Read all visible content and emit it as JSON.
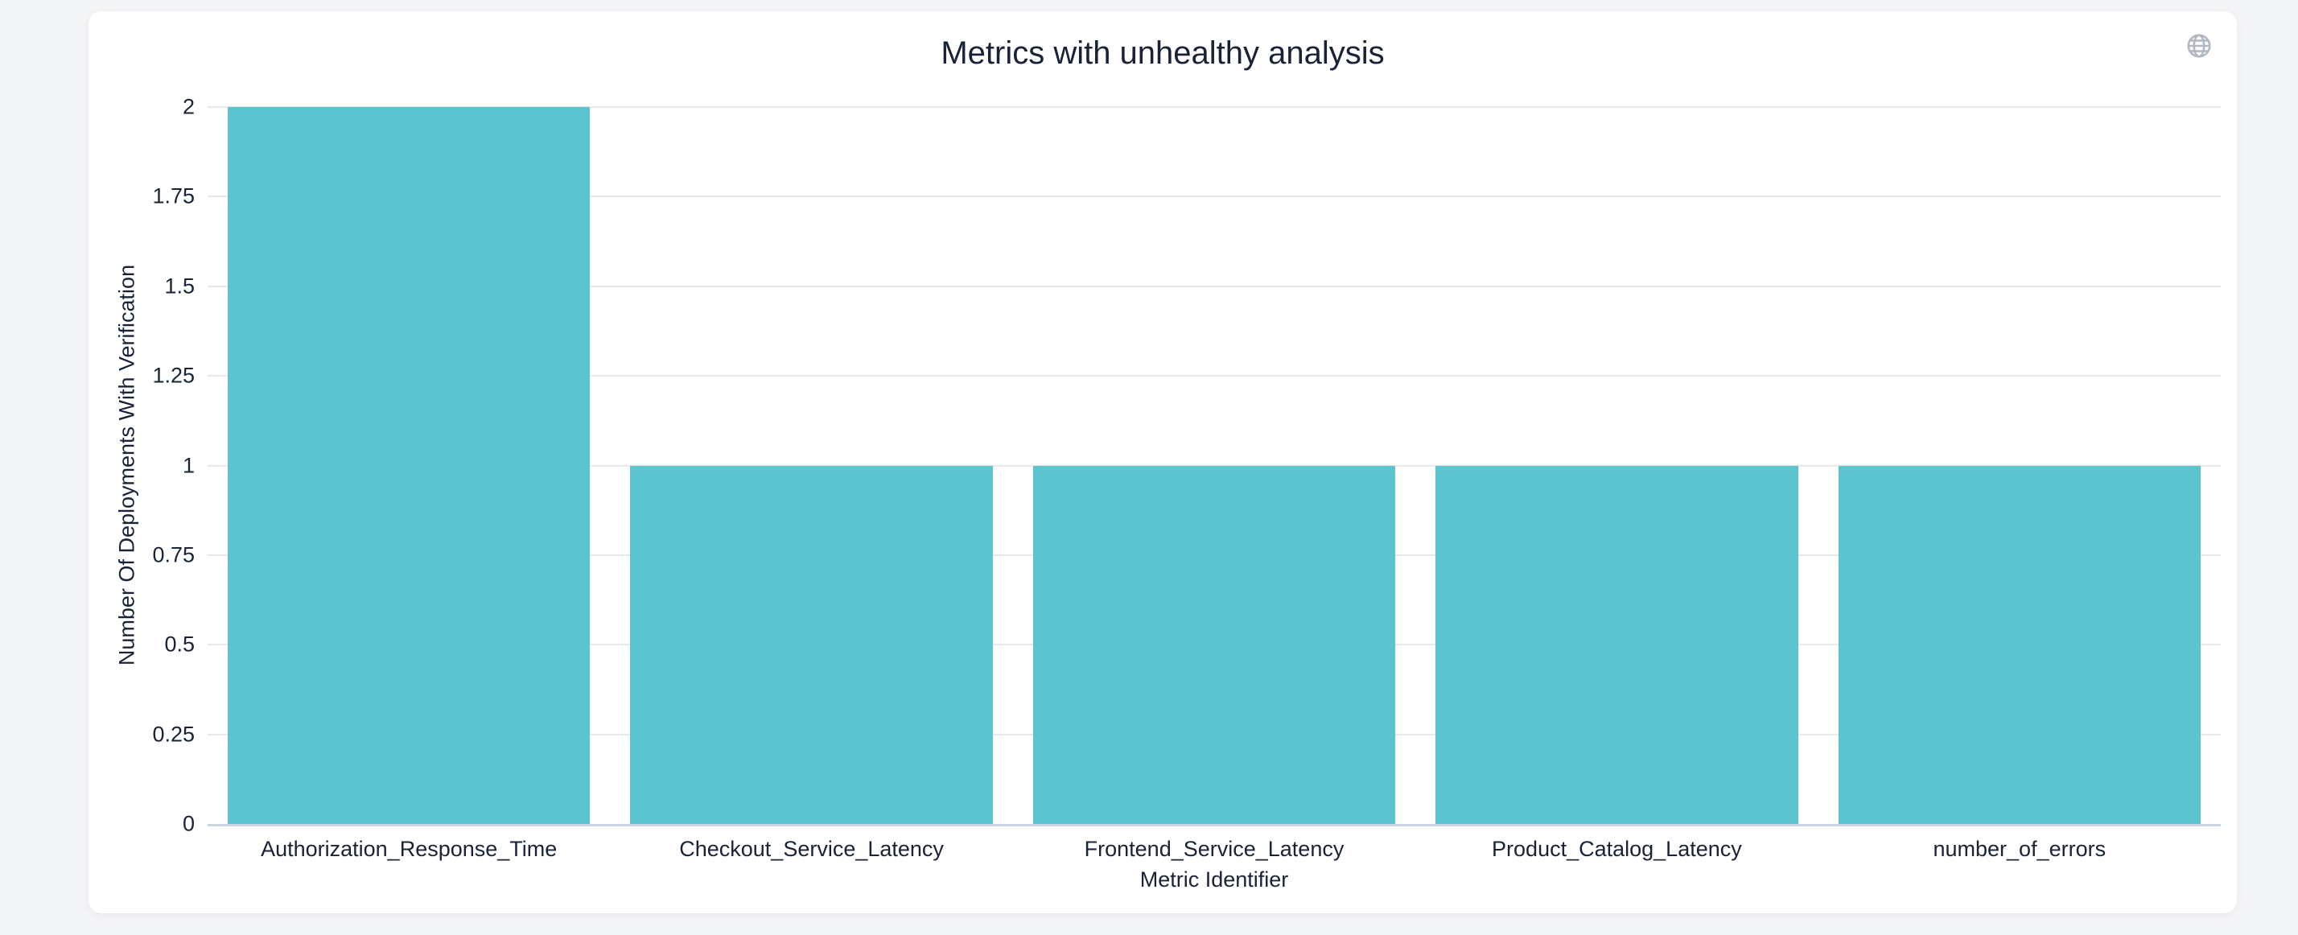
{
  "header": {
    "globe_icon": "globe"
  },
  "chart_data": {
    "type": "bar",
    "title": "Metrics with unhealthy analysis",
    "xlabel": "Metric Identifier",
    "ylabel": "Number Of Deployments With Verification",
    "categories": [
      "Authorization_Response_Time",
      "Checkout_Service_Latency",
      "Frontend_Service_Latency",
      "Product_Catalog_Latency",
      "number_of_errors"
    ],
    "values": [
      2,
      1,
      1,
      1,
      1
    ],
    "ylim": [
      0,
      2
    ],
    "ytick_step": 0.25,
    "ytick_labels": [
      "0",
      "0.25",
      "0.5",
      "0.75",
      "1",
      "1.25",
      "1.5",
      "1.75",
      "2"
    ],
    "grid": "on",
    "legend": "none",
    "bar_band_fraction": 0.9,
    "colors": {
      "bar": "#5bc4ce",
      "grid": "#e8e8ea",
      "axis_line": "#ccd6e3",
      "text": "#182338",
      "icon": "#b1b8c4",
      "page_bg": "#f4f5f7",
      "card_bg": "#ffffff"
    }
  }
}
